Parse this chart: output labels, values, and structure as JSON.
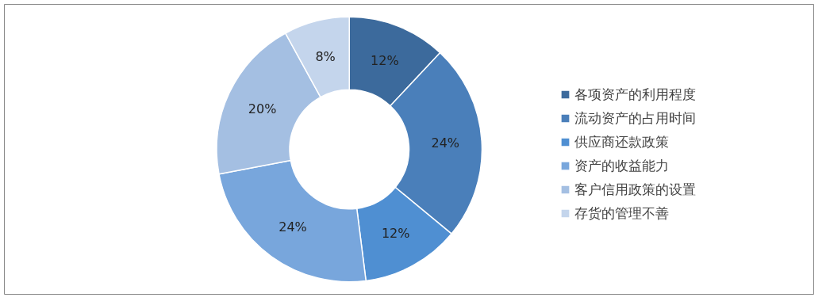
{
  "chart_data": {
    "type": "donut",
    "categories": [
      "各项资产的利用程度",
      "流动资产的占用时间",
      "供应商还款政策",
      "资产的收益能力",
      "客户信用政策的设置",
      "存货的管理不善"
    ],
    "values": [
      12,
      24,
      12,
      24,
      20,
      8
    ],
    "value_labels": [
      "12%",
      "24%",
      "12%",
      "24%",
      "20%",
      "8%"
    ],
    "colors": [
      "#3c6a9c",
      "#4a7fba",
      "#4f8fd2",
      "#78a6dc",
      "#a4bfe2",
      "#c4d5ec"
    ],
    "legend": "right"
  }
}
